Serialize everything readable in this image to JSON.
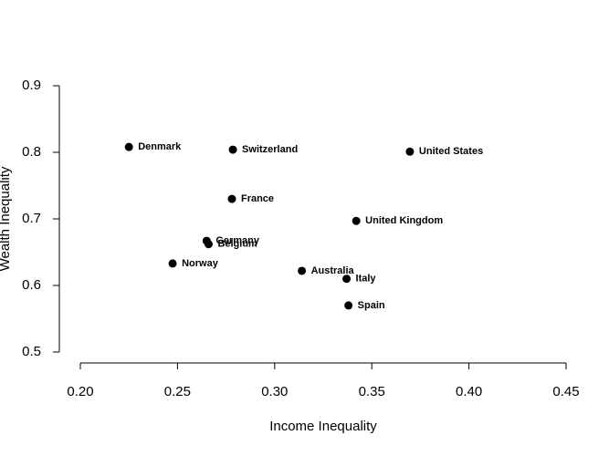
{
  "chart_data": {
    "type": "scatter",
    "x_label": "Income Inequality",
    "y_label": "Wealth Inequality",
    "labels": [
      "Denmark",
      "Switzerland",
      "United States",
      "France",
      "United Kingdom",
      "Germany",
      "Belgium",
      "Norway",
      "Australia",
      "Italy",
      "Spain"
    ],
    "x": [
      0.225,
      0.2785,
      0.3696,
      0.278,
      0.342,
      0.265,
      0.266,
      0.2475,
      0.314,
      0.337,
      0.338
    ],
    "values": [
      0.808,
      0.804,
      0.801,
      0.73,
      0.697,
      0.667,
      0.662,
      0.633,
      0.622,
      0.61,
      0.57
    ],
    "color": "#000000",
    "xlim": [
      0.2,
      0.45
    ],
    "ylim": [
      0.5,
      0.9
    ],
    "xticks": [
      {
        "value": 0.2,
        "label": "0.20"
      },
      0.25,
      {
        "value": 0.3,
        "label": "0.30"
      },
      0.35,
      {
        "value": 0.4,
        "label": "0.40"
      },
      0.45
    ],
    "yticks": [
      0.5,
      0.6,
      0.7,
      0.8,
      0.9
    ]
  }
}
